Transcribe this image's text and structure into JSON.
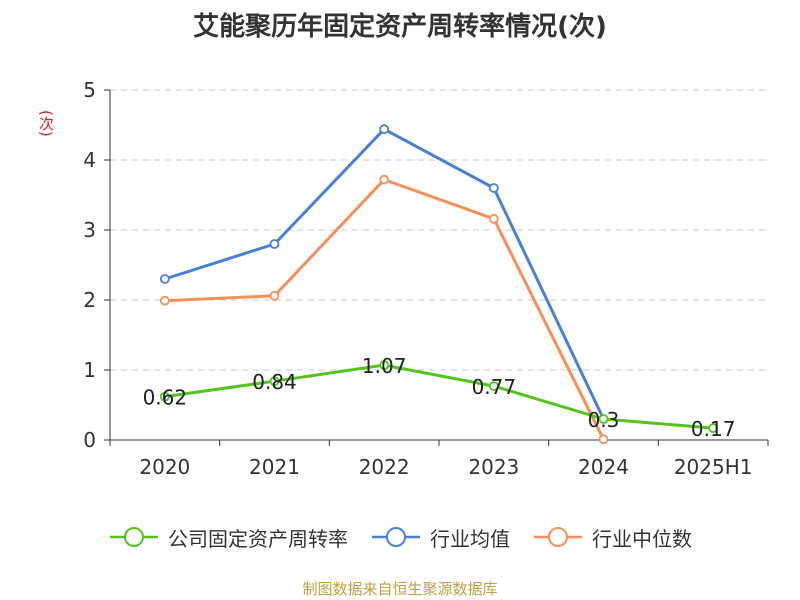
{
  "chart_data": {
    "type": "line",
    "title": "艾能聚历年固定资产周转率情况(次)",
    "ylabel": "(次)",
    "xlabel": "",
    "categories": [
      "2020",
      "2021",
      "2022",
      "2023",
      "2024",
      "2025H1"
    ],
    "ylim": [
      0,
      5
    ],
    "yticks": [
      "0",
      "1",
      "2",
      "3",
      "4",
      "5"
    ],
    "grid": true,
    "legend_position": "bottom",
    "series": [
      {
        "name": "公司固定资产周转率",
        "color": "#52c41a",
        "values": [
          0.62,
          0.84,
          1.07,
          0.77,
          0.3,
          0.17
        ],
        "labels": [
          "0.62",
          "0.84",
          "1.07",
          "0.77",
          "0.3",
          "0.17"
        ]
      },
      {
        "name": "行业均值",
        "color": "#4a7fd8",
        "values": [
          2.3,
          2.8,
          4.44,
          3.6,
          0.3,
          null
        ],
        "labels": null
      },
      {
        "name": "行业中位数",
        "color": "#f5905a",
        "values": [
          1.99,
          2.06,
          3.72,
          3.16,
          0.01,
          null
        ],
        "labels": null
      }
    ]
  },
  "source": "制图数据来自恒生聚源数据库"
}
